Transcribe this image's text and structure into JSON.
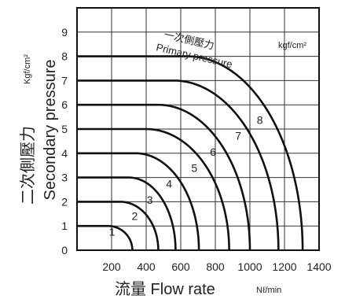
{
  "chart_data": {
    "type": "line",
    "xlabel": "流量 Flow rate",
    "xunit": "Nℓ/min",
    "ylabel": "Secondary pressure",
    "ylabel_jp": "二次側壓力",
    "yunit": "Kgf/cm²",
    "annotation_jp": "一次側壓力",
    "annotation_en": "Primary pressure",
    "legend_unit": "kgf/cm²",
    "xlim": [
      0,
      1400
    ],
    "ylim": [
      0,
      10
    ],
    "x_ticks": [
      "200",
      "400",
      "600",
      "800",
      "1000",
      "1200",
      "1400"
    ],
    "y_ticks": [
      "0",
      "1",
      "2",
      "3",
      "4",
      "5",
      "6",
      "7",
      "8",
      "9"
    ],
    "grid": true,
    "series": [
      {
        "name": "1",
        "flat": 1.0,
        "knee": 180,
        "qmax": 320
      },
      {
        "name": "2",
        "flat": 2.0,
        "knee": 250,
        "qmax": 470
      },
      {
        "name": "3",
        "flat": 3.0,
        "knee": 300,
        "qmax": 570
      },
      {
        "name": "4",
        "flat": 4.0,
        "knee": 340,
        "qmax": 705
      },
      {
        "name": "5",
        "flat": 5.0,
        "knee": 400,
        "qmax": 880
      },
      {
        "name": "6",
        "flat": 6.0,
        "knee": 470,
        "qmax": 1000
      },
      {
        "name": "7",
        "flat": 7.0,
        "knee": 560,
        "qmax": 1165
      },
      {
        "name": "8",
        "flat": 8.0,
        "knee": 640,
        "qmax": 1305
      }
    ]
  }
}
